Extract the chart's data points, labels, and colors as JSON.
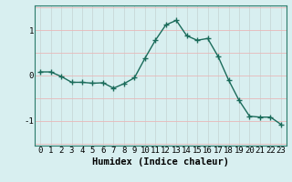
{
  "x": [
    0,
    1,
    2,
    3,
    4,
    5,
    6,
    7,
    8,
    9,
    10,
    11,
    12,
    13,
    14,
    15,
    16,
    17,
    18,
    19,
    20,
    21,
    22,
    23
  ],
  "y": [
    0.08,
    0.08,
    -0.02,
    -0.15,
    -0.15,
    -0.17,
    -0.16,
    -0.28,
    -0.18,
    -0.05,
    0.38,
    0.78,
    1.12,
    1.22,
    0.88,
    0.78,
    0.82,
    0.42,
    -0.1,
    -0.55,
    -0.9,
    -0.92,
    -0.92,
    -1.08
  ],
  "line_color": "#1a6b5a",
  "marker": "+",
  "marker_size": 4,
  "bg_color": "#d8eff0",
  "grid_color_h": "#e8b8b8",
  "grid_color_v": "#c8d8d8",
  "xlabel": "Humidex (Indice chaleur)",
  "xlabel_fontsize": 7.5,
  "tick_fontsize": 6.5,
  "ylim": [
    -1.55,
    1.55
  ],
  "yticks": [
    -1,
    0,
    1
  ],
  "xlim": [
    -0.5,
    23.5
  ],
  "xticks": [
    0,
    1,
    2,
    3,
    4,
    5,
    6,
    7,
    8,
    9,
    10,
    11,
    12,
    13,
    14,
    15,
    16,
    17,
    18,
    19,
    20,
    21,
    22,
    23
  ],
  "linewidth": 1.0
}
